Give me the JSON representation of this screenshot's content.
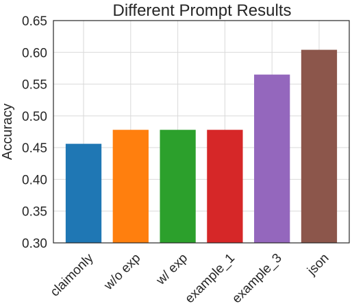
{
  "chart_data": {
    "type": "bar",
    "title": "Different Prompt Results",
    "xlabel": "",
    "ylabel": "Accuracy",
    "categories": [
      "claimonly",
      "w/o exp",
      "w/ exp",
      "example_1",
      "example_3",
      "json"
    ],
    "values": [
      0.456,
      0.478,
      0.478,
      0.478,
      0.565,
      0.604
    ],
    "colors": [
      "#1f77b4",
      "#ff7f0e",
      "#2ca02c",
      "#d62728",
      "#9467bd",
      "#8c564b"
    ],
    "ylim": [
      0.3,
      0.65
    ],
    "yticks": [
      "0.30",
      "0.35",
      "0.40",
      "0.45",
      "0.50",
      "0.55",
      "0.60",
      "0.65"
    ],
    "grid": true,
    "legend": "none"
  }
}
